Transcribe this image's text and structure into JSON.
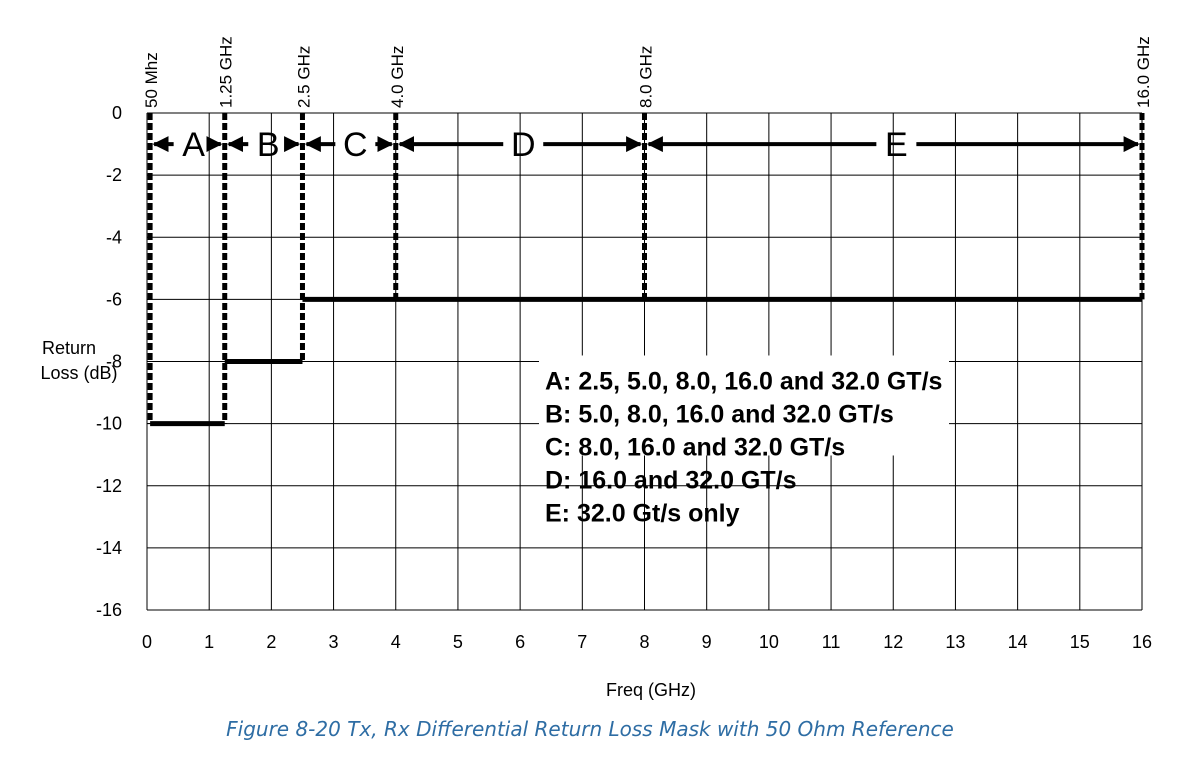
{
  "chart_data": {
    "type": "line",
    "caption": "Figure  8-20  Tx, Rx Differential Return Loss Mask with 50 Ohm Reference",
    "xlabel": "Freq (GHz)",
    "ylabel_line1": "Return",
    "ylabel_line2": "Loss (dB)",
    "xlim": [
      0,
      16
    ],
    "ylim": [
      -16,
      0
    ],
    "x_ticks": [
      0,
      1,
      2,
      3,
      4,
      5,
      6,
      7,
      8,
      9,
      10,
      11,
      12,
      13,
      14,
      15,
      16
    ],
    "y_ticks": [
      0,
      -2,
      -4,
      -6,
      -8,
      -10,
      -12,
      -14,
      -16
    ],
    "grid": true,
    "mask": [
      {
        "x": [
          0.05,
          1.25
        ],
        "y": -10
      },
      {
        "x": [
          1.25,
          2.5
        ],
        "y": -8
      },
      {
        "x": [
          2.5,
          16.0
        ],
        "y": -6
      }
    ],
    "boundaries": [
      {
        "x": 0.05,
        "label": "50 Mhz"
      },
      {
        "x": 1.25,
        "label": "1.25 GHz"
      },
      {
        "x": 2.5,
        "label": "2.5 GHz"
      },
      {
        "x": 4.0,
        "label": "4.0 GHz"
      },
      {
        "x": 8.0,
        "label": "8.0 GHz"
      },
      {
        "x": 16.0,
        "label": "16.0 GHz"
      }
    ],
    "regions": [
      {
        "label": "A",
        "from": 0.05,
        "to": 1.25,
        "label_x": 0.75
      },
      {
        "label": "B",
        "from": 1.25,
        "to": 2.5,
        "label_x": 1.95
      },
      {
        "label": "C",
        "from": 2.5,
        "to": 4.0,
        "label_x": 3.35
      },
      {
        "label": "D",
        "from": 4.0,
        "to": 8.0,
        "label_x": 6.05
      },
      {
        "label": "E",
        "from": 8.0,
        "to": 16.0,
        "label_x": 12.05
      }
    ],
    "region_arrow_y": -1,
    "legend": [
      "A: 2.5, 5.0, 8.0, 16.0 and 32.0 GT/s",
      "B: 5.0, 8.0, 16.0 and 32.0 GT/s",
      "C: 8.0, 16.0 and 32.0 GT/s",
      "D: 16.0 and 32.0 GT/s",
      "E: 32.0 Gt/s only"
    ],
    "legend_anchor": {
      "x": 6.4,
      "y": -8.45
    }
  }
}
